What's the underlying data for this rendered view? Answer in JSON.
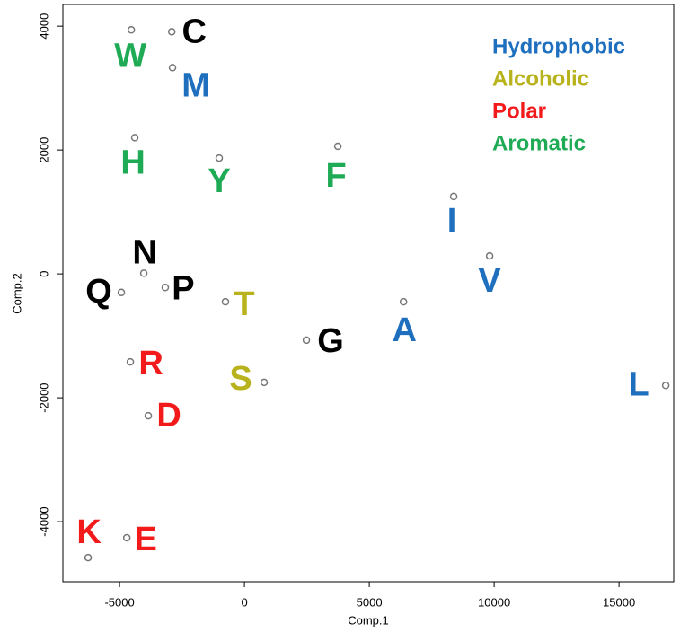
{
  "chart_data": {
    "type": "scatter",
    "xlabel": "Comp.1",
    "ylabel": "Comp.2",
    "xlim": [
      -7270,
      17190
    ],
    "ylim": [
      -4970,
      4350
    ],
    "xticks": [
      -5000,
      0,
      5000,
      10000,
      15000
    ],
    "yticks": [
      -4000,
      -2000,
      0,
      2000,
      4000
    ],
    "marker_color": "#777777",
    "legend": [
      {
        "name": "Hydrophobic",
        "color": "#1f6fbf"
      },
      {
        "name": "Alcoholic",
        "color": "#b8b21c"
      },
      {
        "name": "Polar",
        "color": "#f21a1a"
      },
      {
        "name": "Aromatic",
        "color": "#1fab55"
      }
    ],
    "points": [
      {
        "label": "W",
        "x": -4530,
        "y": 3940,
        "color": "#1fab55"
      },
      {
        "label": "C",
        "x": -2910,
        "y": 3910,
        "color": "#000000"
      },
      {
        "label": "M",
        "x": -2880,
        "y": 3330,
        "color": "#1f6fbf"
      },
      {
        "label": "H",
        "x": -4390,
        "y": 2200,
        "color": "#1fab55"
      },
      {
        "label": "Y",
        "x": -1010,
        "y": 1870,
        "color": "#1fab55"
      },
      {
        "label": "F",
        "x": 3740,
        "y": 2060,
        "color": "#1fab55"
      },
      {
        "label": "I",
        "x": 8380,
        "y": 1250,
        "color": "#1f6fbf"
      },
      {
        "label": "V",
        "x": 9820,
        "y": 290,
        "color": "#1f6fbf"
      },
      {
        "label": "N",
        "x": -4030,
        "y": 10,
        "color": "#000000"
      },
      {
        "label": "P",
        "x": -3170,
        "y": -220,
        "color": "#000000"
      },
      {
        "label": "Q",
        "x": -4930,
        "y": -300,
        "color": "#000000"
      },
      {
        "label": "T",
        "x": -760,
        "y": -450,
        "color": "#b8b21c"
      },
      {
        "label": "A",
        "x": 6370,
        "y": -450,
        "color": "#1f6fbf"
      },
      {
        "label": "G",
        "x": 2480,
        "y": -1070,
        "color": "#000000"
      },
      {
        "label": "R",
        "x": -4570,
        "y": -1420,
        "color": "#f21a1a"
      },
      {
        "label": "S",
        "x": 790,
        "y": -1750,
        "color": "#b8b21c"
      },
      {
        "label": "L",
        "x": 16870,
        "y": -1800,
        "color": "#1f6fbf"
      },
      {
        "label": "D",
        "x": -3850,
        "y": -2290,
        "color": "#f21a1a"
      },
      {
        "label": "E",
        "x": -4710,
        "y": -4260,
        "color": "#f21a1a"
      },
      {
        "label": "K",
        "x": -6260,
        "y": -4580,
        "color": "#f21a1a"
      }
    ]
  }
}
